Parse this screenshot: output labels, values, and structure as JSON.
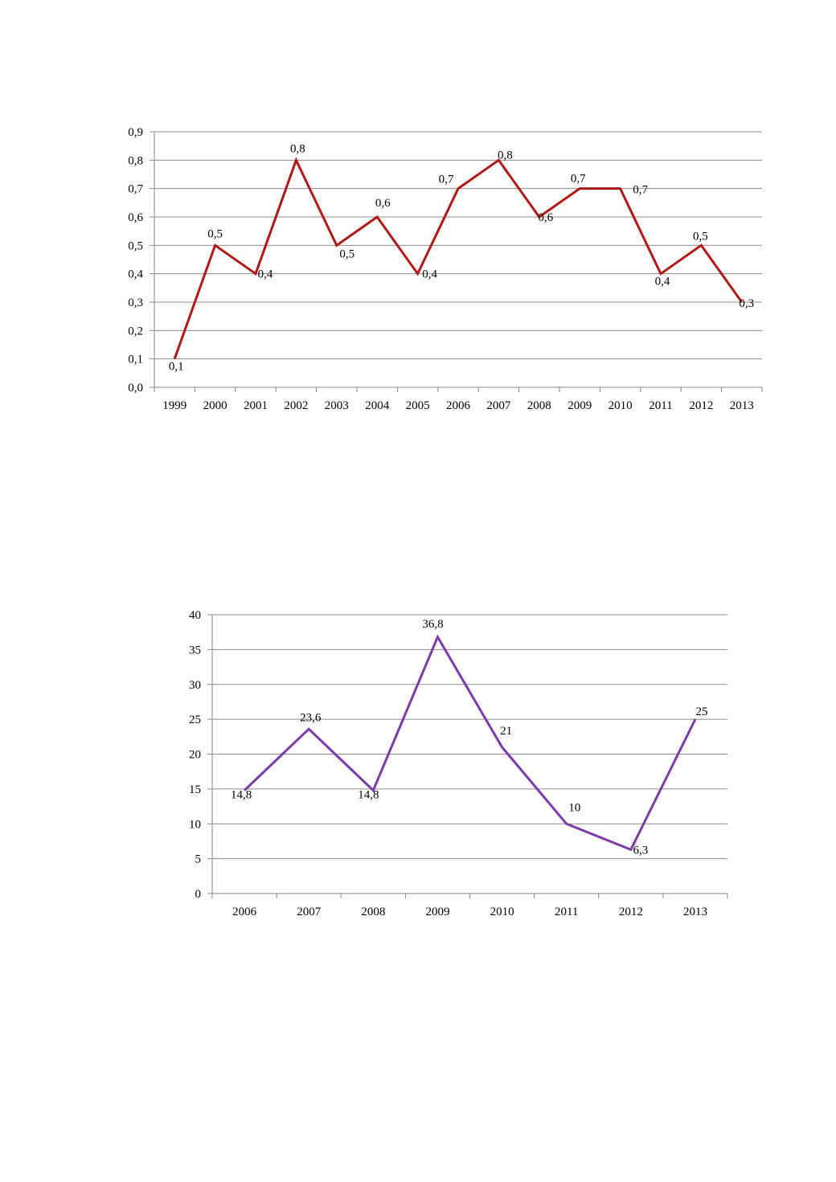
{
  "chart_data": [
    {
      "type": "line",
      "categories": [
        "1999",
        "2000",
        "2001",
        "2002",
        "2003",
        "2004",
        "2005",
        "2006",
        "2007",
        "2008",
        "2009",
        "2010",
        "2011",
        "2012",
        "2013"
      ],
      "series": [
        {
          "values": [
            0.1,
            0.5,
            0.4,
            0.8,
            0.5,
            0.6,
            0.4,
            0.7,
            0.8,
            0.6,
            0.7,
            0.7,
            0.4,
            0.5,
            0.3
          ],
          "labels": [
            "0,1",
            "0,5",
            "0,4",
            "0,8",
            "0,5",
            "0,6",
            "0,4",
            "0,7",
            "0,8",
            "0,6",
            "0,7",
            "0,7",
            "0,4",
            "0,5",
            "0,3"
          ],
          "color": "#b01818"
        }
      ],
      "ylim": [
        0,
        0.9
      ],
      "yticks": [
        "0,0",
        "0,1",
        "0,2",
        "0,3",
        "0,4",
        "0,5",
        "0,6",
        "0,7",
        "0,8",
        "0,9"
      ],
      "grid": true,
      "title": "",
      "xlabel": "",
      "ylabel": ""
    },
    {
      "type": "line",
      "categories": [
        "2006",
        "2007",
        "2008",
        "2009",
        "2010",
        "2011",
        "2012",
        "2013"
      ],
      "series": [
        {
          "values": [
            14.8,
            23.6,
            14.8,
            36.8,
            21,
            10,
            6.3,
            25
          ],
          "labels": [
            "14,8",
            "23,6",
            "14,8",
            "36,8",
            "21",
            "10",
            "6,3",
            "25"
          ],
          "color": "#7a3aa8"
        }
      ],
      "ylim": [
        0,
        40
      ],
      "yticks": [
        "0",
        "5",
        "10",
        "15",
        "20",
        "25",
        "30",
        "35",
        "40"
      ],
      "grid": true,
      "title": "",
      "xlabel": "",
      "ylabel": ""
    }
  ]
}
